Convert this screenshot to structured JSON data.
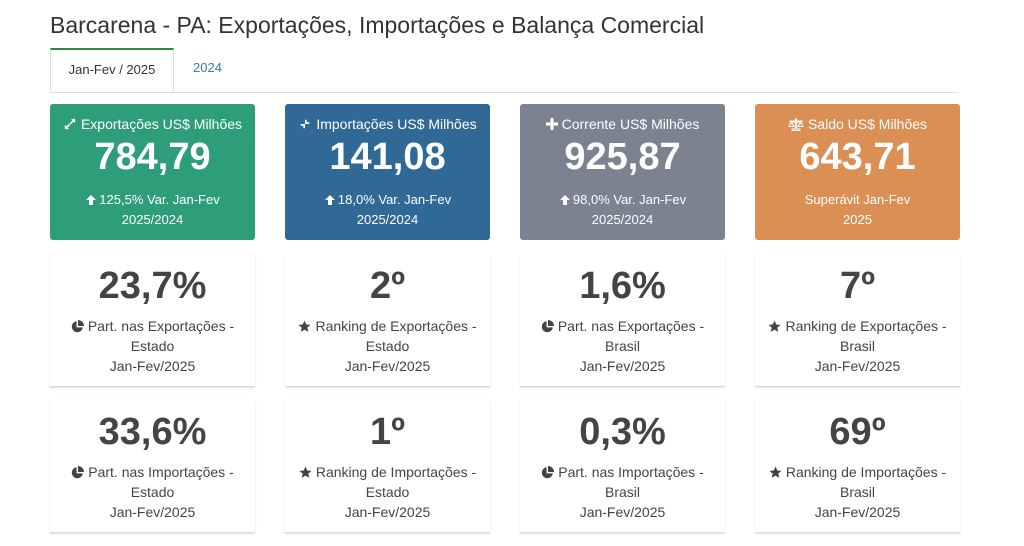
{
  "header": {
    "title": "Barcarena - PA: Exportações, Importações e Balança Comercial"
  },
  "tabs": [
    {
      "label": "Jan-Fev / 2025",
      "active": true
    },
    {
      "label": "2024",
      "active": false
    }
  ],
  "cards": [
    {
      "id": "export",
      "title": "Exportações US$ Milhões",
      "value": "784,79",
      "sub_line1": "125,5% Var. Jan-Fev",
      "sub_line2": "2025/2024",
      "color": "#2e9e7a",
      "icon": "expand-arrows-icon",
      "sub_icon": "arrow-up-icon"
    },
    {
      "id": "import",
      "title": "Importações US$ Milhões",
      "value": "141,08",
      "sub_line1": "18,0% Var. Jan-Fev",
      "sub_line2": "2025/2024",
      "color": "#306995",
      "icon": "compress-arrows-icon",
      "sub_icon": "arrow-up-icon"
    },
    {
      "id": "corrente",
      "title": "Corrente US$ Milhões",
      "value": "925,87",
      "sub_line1": "98,0% Var. Jan-Fev",
      "sub_line2": "2025/2024",
      "color": "#7b8391",
      "icon": "plus-icon",
      "sub_icon": "arrow-up-icon"
    },
    {
      "id": "saldo",
      "title": "Saldo US$ Milhões",
      "value": "643,71",
      "sub_line1": "Superávit Jan-Fev",
      "sub_line2": "2025",
      "color": "#db8f55",
      "icon": "balance-scale-icon",
      "sub_icon": ""
    }
  ],
  "stats_row1": [
    {
      "value": "23,7%",
      "label1": "Part. nas Exportações -",
      "label2": "Estado",
      "label3": "Jan-Fev/2025",
      "icon": "pie-chart-icon"
    },
    {
      "value": "2º",
      "label1": "Ranking de Exportações -",
      "label2": "Estado",
      "label3": "Jan-Fev/2025",
      "icon": "star-icon"
    },
    {
      "value": "1,6%",
      "label1": "Part. nas Exportações -",
      "label2": "Brasil",
      "label3": "Jan-Fev/2025",
      "icon": "pie-chart-icon"
    },
    {
      "value": "7º",
      "label1": "Ranking de Exportações -",
      "label2": "Brasil",
      "label3": "Jan-Fev/2025",
      "icon": "star-icon"
    }
  ],
  "stats_row2": [
    {
      "value": "33,6%",
      "label1": "Part. nas Importações -",
      "label2": "Estado",
      "label3": "Jan-Fev/2025",
      "icon": "pie-chart-icon"
    },
    {
      "value": "1º",
      "label1": "Ranking de Importações -",
      "label2": "Estado",
      "label3": "Jan-Fev/2025",
      "icon": "star-icon"
    },
    {
      "value": "0,3%",
      "label1": "Part. nas Importações -",
      "label2": "Brasil",
      "label3": "Jan-Fev/2025",
      "icon": "pie-chart-icon"
    },
    {
      "value": "69º",
      "label1": "Ranking de Importações -",
      "label2": "Brasil",
      "label3": "Jan-Fev/2025",
      "icon": "star-icon"
    }
  ]
}
